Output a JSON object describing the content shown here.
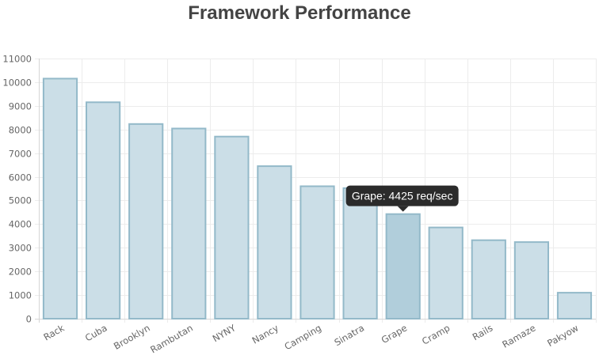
{
  "chart_data": {
    "type": "bar",
    "title": "Framework Performance",
    "xlabel": "",
    "ylabel": "",
    "categories": [
      "Rack",
      "Cuba",
      "Brooklyn",
      "Rambutan",
      "NYNY",
      "Nancy",
      "Camping",
      "Sinatra",
      "Grape",
      "Cramp",
      "Rails",
      "Ramaze",
      "Pakyow"
    ],
    "values": [
      10150,
      9150,
      8230,
      8040,
      7700,
      6450,
      5600,
      5520,
      4425,
      3860,
      3320,
      3240,
      1100
    ],
    "ylim": [
      0,
      11000
    ],
    "yticks": [
      0,
      1000,
      2000,
      3000,
      4000,
      5000,
      6000,
      7000,
      8000,
      9000,
      10000,
      11000
    ],
    "grid": true,
    "colors": {
      "bar_fill": "#cbdee7",
      "bar_stroke": "#93b9c9",
      "bar_fill_highlight": "#b1cedb",
      "grid": "#ececec",
      "tooltip_bg": "#2b2b2b"
    },
    "tooltip": {
      "category": "Grape",
      "text": "Grape: 4425 req/sec"
    }
  }
}
